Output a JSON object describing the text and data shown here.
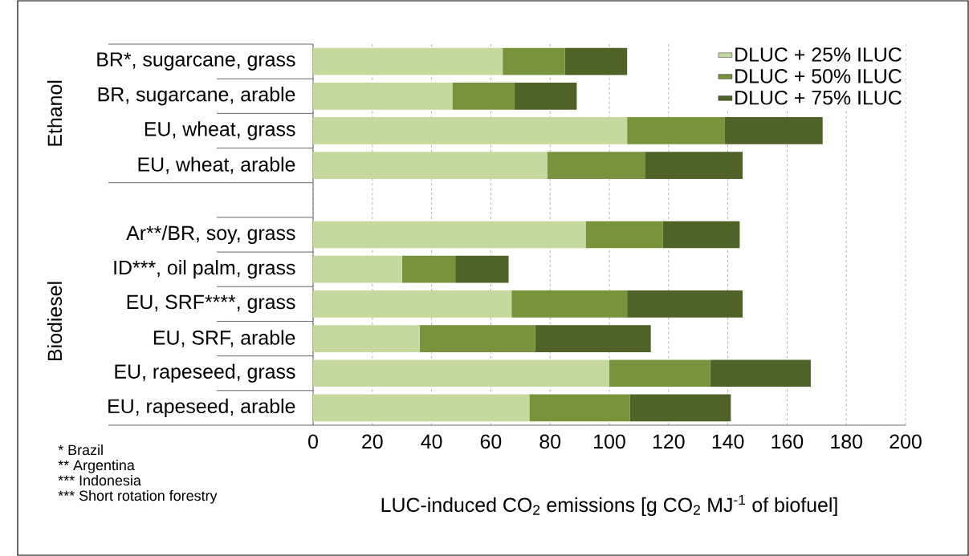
{
  "chart_data": {
    "type": "bar",
    "orientation": "horizontal",
    "stacked": true,
    "categories": [
      "BR*, sugarcane, grass",
      "BR, sugarcane, arable",
      "EU, wheat, grass",
      "EU, wheat, arable",
      null,
      "Ar**/BR, soy, grass",
      "ID***, oil palm, grass",
      "EU, SRF****, grass",
      "EU, SRF, arable",
      "EU, rapeseed, grass",
      "EU, rapeseed, arable"
    ],
    "series": [
      {
        "name": "DLUC + 25% ILUC",
        "color": "#c5d89d",
        "values": [
          64,
          47,
          106,
          79,
          null,
          92,
          30,
          67,
          36,
          100,
          73
        ]
      },
      {
        "name": "DLUC + 50% ILUC",
        "color": "#77933c",
        "values": [
          21,
          21,
          33,
          33,
          null,
          26,
          18,
          39,
          39,
          34,
          34
        ]
      },
      {
        "name": "DLUC + 75% ILUC",
        "color": "#4f6228",
        "values": [
          21,
          21,
          33,
          33,
          null,
          26,
          18,
          39,
          39,
          34,
          34
        ]
      }
    ],
    "xlabel": "LUC-induced CO$_{2}$ emissions [g CO$_{2}$ MJ$^{-1}$ of biofuel]",
    "xlim": [
      0,
      200
    ],
    "xticks": [
      0,
      20,
      40,
      60,
      80,
      100,
      120,
      140,
      160,
      180,
      200
    ],
    "grid": "x",
    "legend": "top right",
    "annotations": [
      "Ethanol",
      "Biodiesel",
      "* Brazil",
      "** Argentina",
      "*** Indonesia",
      "*** Short rotation forestry"
    ]
  }
}
